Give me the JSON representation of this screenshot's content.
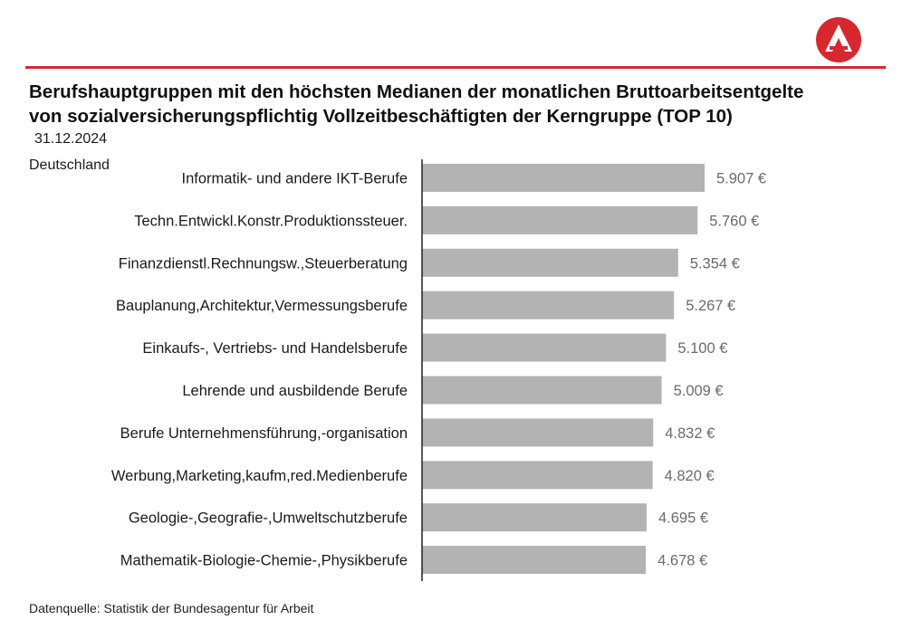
{
  "header": {
    "title_line1": "Berufshauptgruppen mit den höchsten Medianen der monatlichen Bruttoarbeitsentgelte",
    "title_line2": "von sozialversicherungspflichtig Vollzeitbeschäftigten der Kerngruppe (TOP 10)",
    "date": "31.12.2024",
    "region": "Deutschland"
  },
  "footer": {
    "source": "Datenquelle: Statistik der Bundesagentur für Arbeit"
  },
  "colors": {
    "accent": "#d7282f",
    "bar": "#b3b3b3",
    "axis": "#222222",
    "value_text": "#6b6b6b"
  },
  "logo": {
    "icon": "bundesagentur-logo-icon"
  },
  "chart_data": {
    "type": "bar",
    "orientation": "horizontal",
    "categories": [
      "Informatik- und andere IKT-Berufe",
      "Techn.Entwickl.Konstr.Produktionssteuer.",
      "Finanzdienstl.Rechnungsw.,Steuerberatung",
      "Bauplanung,Architektur,Vermessungsberufe",
      "Einkaufs-, Vertriebs- und Handelsberufe",
      "Lehrende und ausbildende Berufe",
      "Berufe Unternehmensführung,-organisation",
      "Werbung,Marketing,kaufm,red.Medienberufe",
      "Geologie-,Geografie-,Umweltschutzberufe",
      "Mathematik-Biologie-Chemie-,Physikberufe"
    ],
    "values": [
      5907,
      5760,
      5354,
      5267,
      5100,
      5009,
      4832,
      4820,
      4695,
      4678
    ],
    "value_labels": [
      "5.907 €",
      "5.760 €",
      "5.354 €",
      "5.267 €",
      "5.100 €",
      "5.009 €",
      "4.832 €",
      "4.820 €",
      "4.695 €",
      "4.678 €"
    ],
    "xlim": [
      0,
      5907
    ],
    "grid": false,
    "legend": "none"
  }
}
